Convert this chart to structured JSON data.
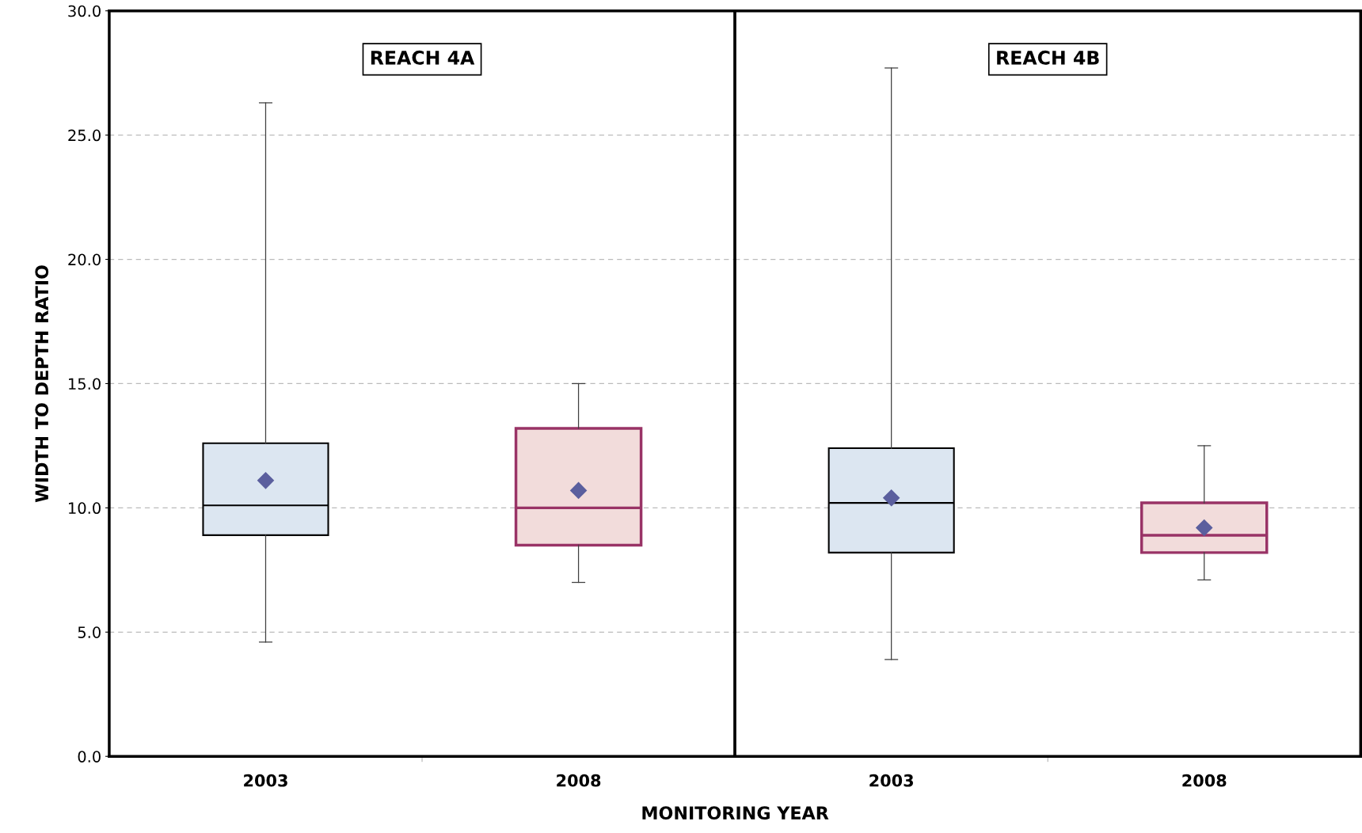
{
  "chart_data": [
    {
      "type": "box",
      "title": "REACH 4A",
      "xlabel": "MONITORING YEAR",
      "ylabel": "WIDTH TO DEPTH RATIO",
      "categories": [
        "2003",
        "2008"
      ],
      "boxes": [
        {
          "low": 4.6,
          "q1": 8.9,
          "median": 10.1,
          "q3": 12.6,
          "high": 26.3,
          "mean": 11.1
        },
        {
          "low": 7.0,
          "q1": 8.5,
          "median": 10.0,
          "q3": 13.2,
          "high": 15.0,
          "mean": 10.7
        }
      ],
      "colors": [
        "#dce6f1",
        "#f2dcdb"
      ],
      "marker": "diamond",
      "grid": "y",
      "ylim": [
        0,
        30
      ],
      "yticks": [
        {
          "value": 0,
          "label": "0.0"
        },
        {
          "value": 5,
          "label": "5.0"
        },
        {
          "value": 10,
          "label": "10.0"
        },
        {
          "value": 15,
          "label": "15.0"
        },
        {
          "value": 20,
          "label": "20.0"
        },
        {
          "value": 25,
          "label": "25.0"
        },
        {
          "value": 30,
          "label": "30.0"
        }
      ]
    },
    {
      "type": "box",
      "title": "REACH 4B",
      "categories": [
        "2003",
        "2008"
      ],
      "boxes": [
        {
          "low": 3.9,
          "q1": 8.2,
          "median": 10.2,
          "q3": 12.4,
          "high": 27.7,
          "mean": 10.4
        },
        {
          "low": 7.1,
          "q1": 8.2,
          "median": 8.9,
          "q3": 10.2,
          "high": 12.5,
          "mean": 9.2
        }
      ],
      "colors": [
        "#dce6f1",
        "#f2dcdb"
      ],
      "marker": "diamond",
      "grid": "y",
      "ylim": [
        0,
        30
      ],
      "yticks": [
        {
          "value": 0,
          "label": null
        },
        {
          "value": 5,
          "label": null
        },
        {
          "value": 10,
          "label": null
        },
        {
          "value": 15,
          "label": null
        },
        {
          "value": 20,
          "label": null
        },
        {
          "value": 25,
          "label": null
        },
        {
          "value": 30,
          "label": null
        }
      ],
      "tick_labels": "x"
    }
  ]
}
